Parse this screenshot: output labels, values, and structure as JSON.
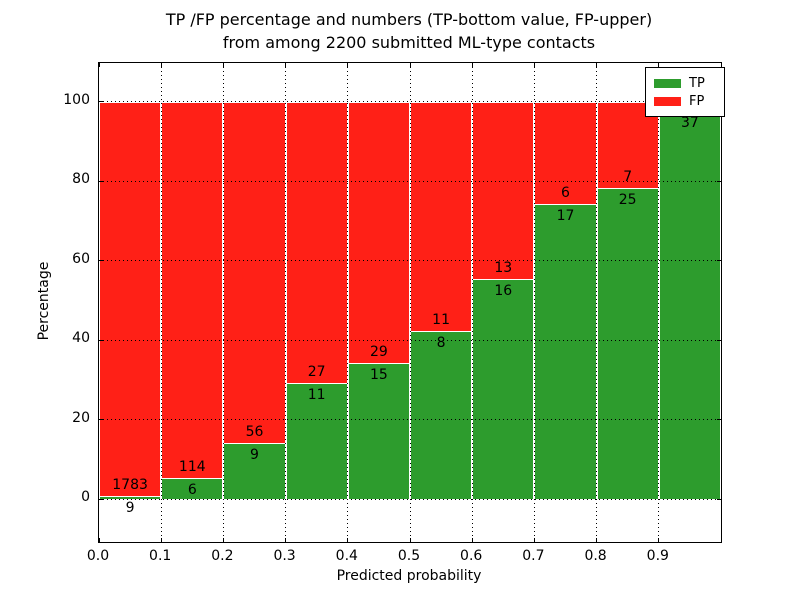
{
  "figure_title": {
    "line1": "TP /FP percentage and numbers (TP-bottom value, FP-upper)",
    "line2": "from among 2200 submitted ML-type contacts"
  },
  "chart_data": {
    "type": "bar",
    "variant": "stacked-percentage-histogram",
    "title": "TP /FP percentage and numbers (TP-bottom value, FP-upper)\nfrom among 2200 submitted ML-type contacts",
    "xlabel": "Predicted probability",
    "ylabel": "Percentage",
    "xlim": [
      0.0,
      1.0
    ],
    "ylim": [
      -10.8,
      109.7
    ],
    "x_ticks": [
      "0.0",
      "0.1",
      "0.2",
      "0.3",
      "0.4",
      "0.5",
      "0.6",
      "0.7",
      "0.8",
      "0.9"
    ],
    "y_ticks": [
      0,
      20,
      40,
      60,
      80,
      100
    ],
    "grid": "dotted-black-both-axes",
    "total_contacts": 2200,
    "colors": {
      "tp": "#2d9c2d",
      "fp": "#ff2017",
      "bar_edge": "#ffffff",
      "background": "#ffffff"
    },
    "legend": {
      "position": "upper-right",
      "entries": [
        {
          "label": "TP",
          "color": "#2d9c2d"
        },
        {
          "label": "FP",
          "color": "#ff2017"
        }
      ]
    },
    "bars": [
      {
        "range": [
          0.0,
          0.1
        ],
        "tp_label": "9",
        "fp_label": "1783",
        "tp_count": 9,
        "fp_count": 1783,
        "tp_pct": 0.5,
        "fp_pct": 99.5
      },
      {
        "range": [
          0.1,
          0.2
        ],
        "tp_label": "6",
        "fp_label": "114",
        "tp_count": 6,
        "fp_count": 114,
        "tp_pct": 5.0,
        "fp_pct": 95.0
      },
      {
        "range": [
          0.2,
          0.3
        ],
        "tp_label": "9",
        "fp_label": "56",
        "tp_count": 9,
        "fp_count": 56,
        "tp_pct": 13.8,
        "fp_pct": 86.2
      },
      {
        "range": [
          0.3,
          0.4
        ],
        "tp_label": "11",
        "fp_label": "27",
        "tp_count": 11,
        "fp_count": 27,
        "tp_pct": 28.9,
        "fp_pct": 71.1
      },
      {
        "range": [
          0.4,
          0.5
        ],
        "tp_label": "15",
        "fp_label": "29",
        "tp_count": 15,
        "fp_count": 29,
        "tp_pct": 34.1,
        "fp_pct": 65.9
      },
      {
        "range": [
          0.5,
          0.6
        ],
        "tp_label": "8",
        "fp_label": "11",
        "tp_count": 8,
        "fp_count": 11,
        "tp_pct": 42.1,
        "fp_pct": 57.9
      },
      {
        "range": [
          0.6,
          0.7
        ],
        "tp_label": "16",
        "fp_label": "13",
        "tp_count": 16,
        "fp_count": 13,
        "tp_pct": 55.2,
        "fp_pct": 44.8
      },
      {
        "range": [
          0.7,
          0.8
        ],
        "tp_label": "17",
        "fp_label": "6",
        "tp_count": 17,
        "fp_count": 6,
        "tp_pct": 73.9,
        "fp_pct": 26.1
      },
      {
        "range": [
          0.8,
          0.9
        ],
        "tp_label": "25",
        "fp_label": "7",
        "tp_count": 25,
        "fp_count": 7,
        "tp_pct": 78.1,
        "fp_pct": 21.9
      },
      {
        "range": [
          0.9,
          1.0
        ],
        "tp_label": "37",
        "fp_label": "",
        "tp_count": 37,
        "tp_pct": 97.4,
        "fp_pct": 2.6
      }
    ]
  }
}
